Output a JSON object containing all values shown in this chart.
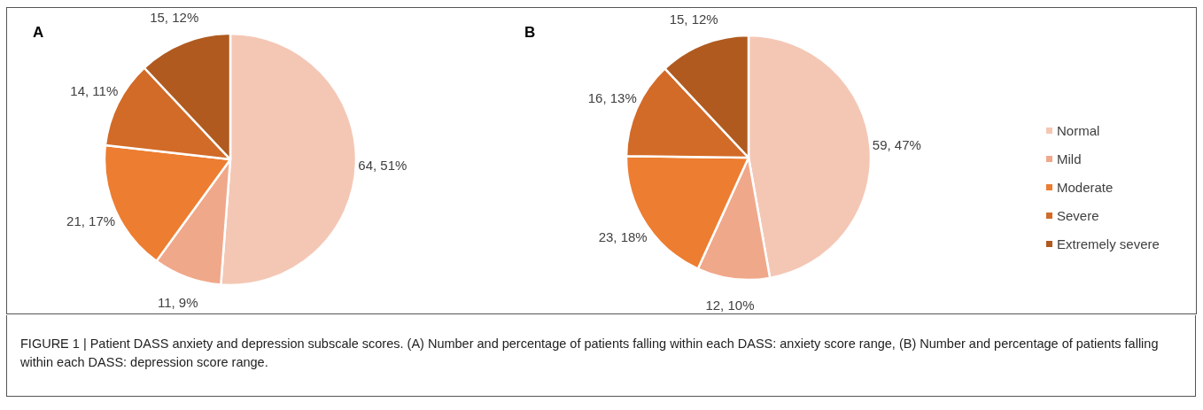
{
  "chart_data": [
    {
      "type": "pie",
      "title": "A",
      "categories": [
        null,
        null,
        null,
        null,
        null
      ],
      "values": [
        64,
        11,
        21,
        14,
        15
      ],
      "value_labels": [
        "64, 51%",
        "11, 9%",
        "21, 17%",
        "14, 11%",
        "15, 12%"
      ],
      "colors": [
        "#f4c7b5",
        "#f0a88a",
        "#ed7d31",
        "#d26b28",
        "#b05a1f"
      ],
      "legend": false,
      "annotations": [
        "FIGURE 1 | Patient DASS anxiety and depression subscale scores. (A) Number and percentage of patients falling within each DASS: anxiety score range, (B) Number and percentage of patients falling within each DASS: depression score range."
      ]
    },
    {
      "type": "pie",
      "title": "B",
      "categories": [
        "Normal",
        "Mild",
        "Moderate",
        "Severe",
        "Extremely severe"
      ],
      "values": [
        59,
        12,
        23,
        16,
        15
      ],
      "value_labels": [
        "59, 47%",
        "12, 10%",
        "23, 18%",
        "16, 13%",
        "15, 12%"
      ],
      "colors": [
        "#f4c7b5",
        "#f0a88a",
        "#ed7d31",
        "#d26b28",
        "#b05a1f"
      ],
      "legend": "right"
    }
  ]
}
